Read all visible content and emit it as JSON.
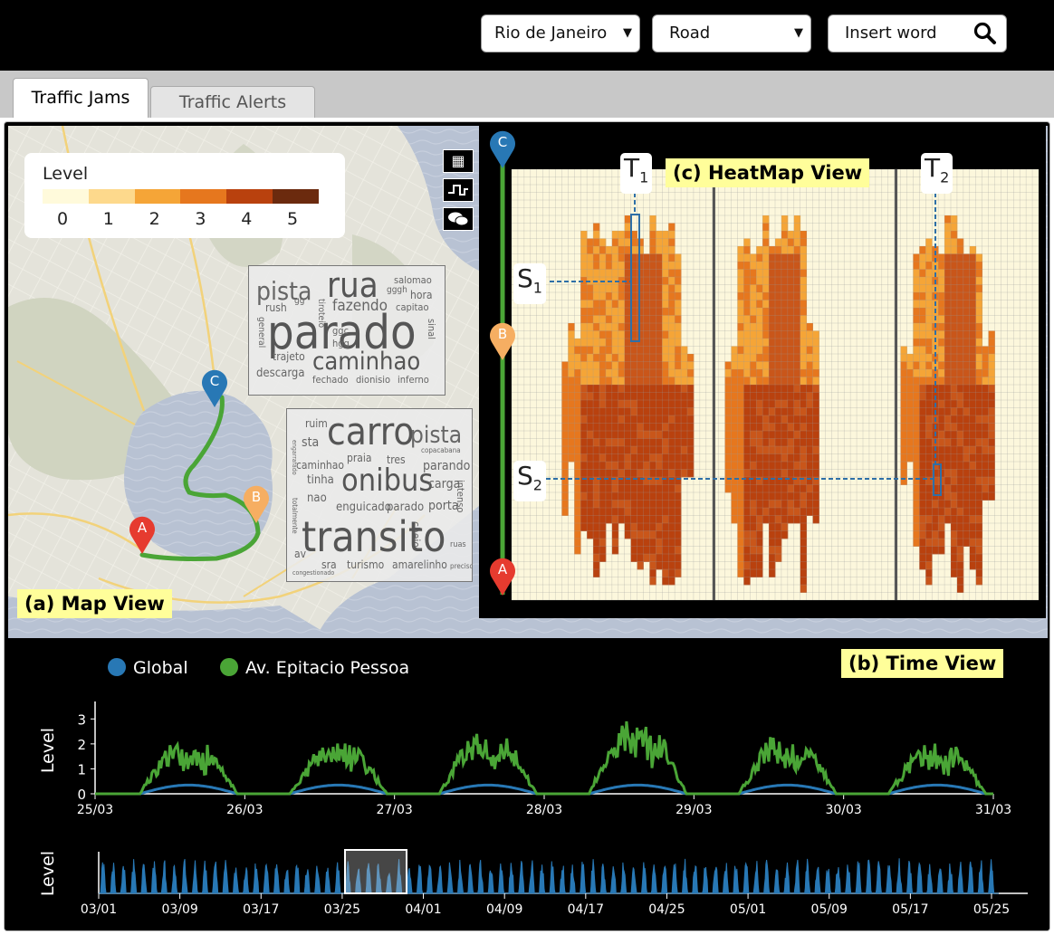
{
  "topbar": {
    "city": "Rio de Janeiro",
    "type": "Road",
    "search_placeholder": "Insert word"
  },
  "tabs": [
    {
      "label": "Traffic Jams",
      "active": true
    },
    {
      "label": "Traffic Alerts",
      "active": false
    }
  ],
  "map": {
    "label": "(a) Map View",
    "legend_title": "Level",
    "legend_levels": [
      "0",
      "1",
      "2",
      "3",
      "4",
      "5"
    ],
    "legend_colors": [
      "#fffadb",
      "#fdd98c",
      "#f5a537",
      "#e6771e",
      "#b9410e",
      "#6b2a0e"
    ],
    "markers": {
      "a": "A",
      "b": "B",
      "c": "C"
    },
    "wordcloud1": [
      "pista",
      "rua",
      "salomao",
      "gggh",
      "hora",
      "rush",
      "gg",
      "fazendo",
      "capitao",
      "parado",
      "sinal",
      "general",
      "tiroteio",
      "ggc",
      "hgg",
      "trajeto",
      "caminhao",
      "descarga",
      "fechado",
      "dionisio",
      "inferno"
    ],
    "wordcloud2": [
      "ruim",
      "carro",
      "pista",
      "sta",
      "praia",
      "tres",
      "copacabana",
      "caminhao",
      "parando",
      "tinha",
      "onibus",
      "carga",
      "nao",
      "enguicado",
      "parado",
      "porta",
      "cheio",
      "intenso",
      "transito",
      "av",
      "sra",
      "turismo",
      "amarelinho",
      "preciso",
      "congestionado",
      "totalmente",
      "engarrafado",
      "ruas"
    ]
  },
  "heatmap": {
    "label": "(c) HeatMap View",
    "t1": "T",
    "t1_sub": "1",
    "t2": "T",
    "t2_sub": "2",
    "s1": "S",
    "s1_sub": "1",
    "s2": "S",
    "s2_sub": "2",
    "markers": {
      "top": "C",
      "mid": "B",
      "bottom": "A"
    }
  },
  "timeview": {
    "label": "(b) Time View",
    "legend": [
      {
        "name": "Global",
        "color": "#2878b5"
      },
      {
        "name": "Av. Epitacio Pessoa",
        "color": "#4aa536"
      }
    ],
    "ylabel": "Level",
    "yticks": [
      "0",
      "1",
      "2",
      "3"
    ],
    "xticks": [
      "25/03",
      "26/03",
      "27/03",
      "28/03",
      "29/03",
      "30/03",
      "31/03"
    ],
    "overview_ylabel": "Level",
    "overview_xticks": [
      "03/01",
      "03/09",
      "03/17",
      "03/25",
      "04/01",
      "04/09",
      "04/17",
      "04/25",
      "05/01",
      "05/09",
      "05/17",
      "05/25"
    ]
  }
}
